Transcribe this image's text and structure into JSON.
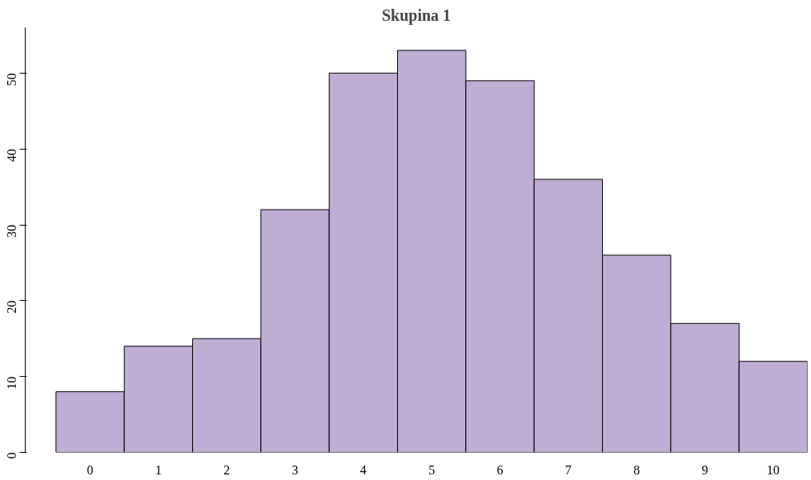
{
  "chart_data": {
    "type": "bar",
    "title": "Skupina 1",
    "categories": [
      "0",
      "1",
      "2",
      "3",
      "4",
      "5",
      "6",
      "7",
      "8",
      "9",
      "10"
    ],
    "values": [
      8,
      14,
      15,
      32,
      50,
      53,
      49,
      36,
      26,
      17,
      12
    ],
    "color": "#bfadd4",
    "ylim": [
      0,
      56
    ],
    "yticks": [
      0,
      10,
      20,
      30,
      40,
      50
    ],
    "grid": false
  }
}
